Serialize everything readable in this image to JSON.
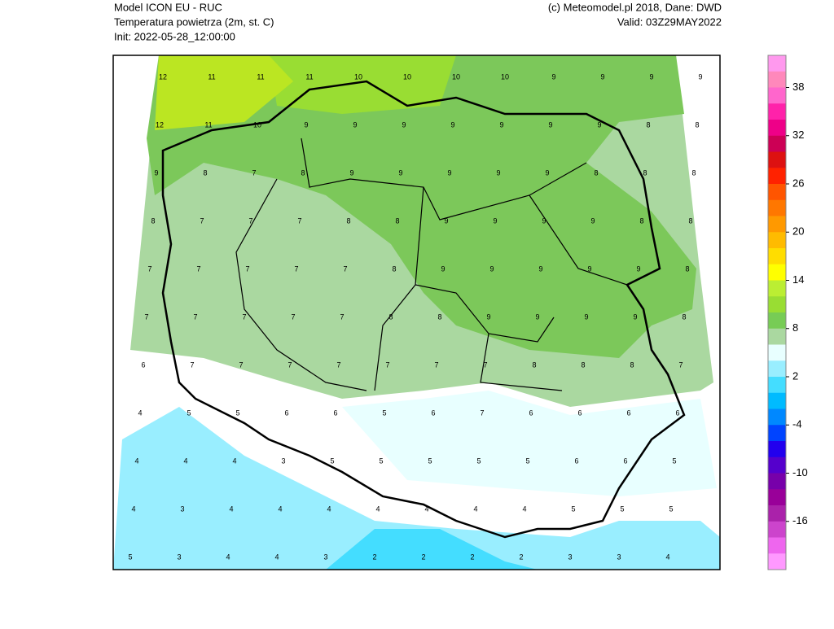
{
  "header": {
    "model": "Model ICON EU - RUC",
    "variable": "Temperatura powietrza (2m, st. C)",
    "init": "Init: 2022-05-28_12:00:00",
    "copyright": "(c) Meteomodel.pl 2018, Dane: DWD",
    "valid": "Valid: 03Z29MAY2022"
  },
  "colorbar": {
    "lim": [
      -22,
      42
    ],
    "ticks": [
      38,
      32,
      26,
      20,
      14,
      8,
      2,
      -4,
      -10,
      -16
    ],
    "colors": [
      "#ff99ee",
      "#ff88bb",
      "#ff66cc",
      "#ff22aa",
      "#ee0088",
      "#cc0055",
      "#dd1111",
      "#ff2200",
      "#ff5500",
      "#ff7700",
      "#ff9900",
      "#ffbb00",
      "#ffdd00",
      "#ffff00",
      "#bbee33",
      "#99dd33",
      "#77cc55",
      "#aad8a0",
      "#e8ffff",
      "#99eeff",
      "#44ddff",
      "#00bbff",
      "#0088ff",
      "#0044ff",
      "#2200ee",
      "#5500cc",
      "#7700aa",
      "#990099",
      "#aa22aa",
      "#cc44cc",
      "#ee66ee",
      "#ff99ff"
    ]
  },
  "grid_values": [
    [
      12,
      11,
      11,
      11,
      10,
      10,
      10,
      10,
      9,
      9,
      9,
      9
    ],
    [
      12,
      11,
      10,
      9,
      9,
      9,
      9,
      9,
      9,
      9,
      8,
      8
    ],
    [
      9,
      8,
      7,
      8,
      9,
      9,
      9,
      9,
      9,
      8,
      8,
      8
    ],
    [
      8,
      7,
      7,
      7,
      8,
      8,
      9,
      9,
      9,
      9,
      8,
      8
    ],
    [
      7,
      7,
      7,
      7,
      7,
      8,
      9,
      9,
      9,
      9,
      9,
      8
    ],
    [
      7,
      7,
      7,
      7,
      7,
      8,
      8,
      9,
      9,
      9,
      9,
      8
    ],
    [
      6,
      7,
      7,
      7,
      7,
      7,
      7,
      7,
      8,
      8,
      8,
      7
    ],
    [
      4,
      5,
      5,
      6,
      6,
      5,
      6,
      7,
      6,
      6,
      6,
      6
    ],
    [
      4,
      4,
      4,
      3,
      5,
      5,
      5,
      5,
      5,
      6,
      6,
      5
    ],
    [
      4,
      3,
      4,
      4,
      4,
      4,
      4,
      4,
      4,
      5,
      5,
      5
    ],
    [
      5,
      3,
      4,
      4,
      3,
      2,
      2,
      2,
      2,
      3,
      3,
      4
    ]
  ]
}
